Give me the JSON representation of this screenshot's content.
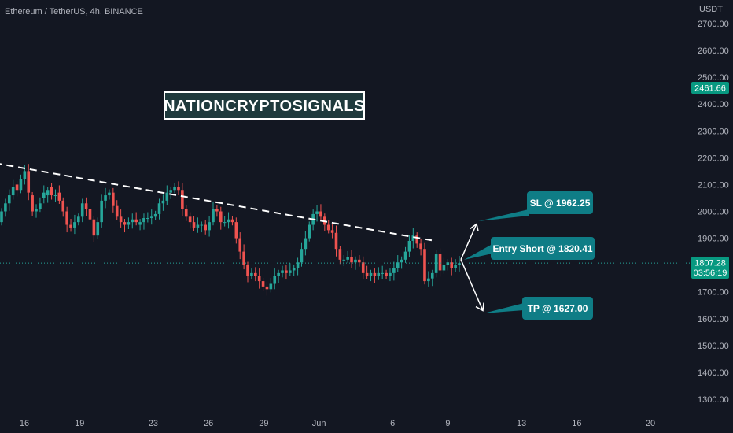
{
  "header": {
    "symbol": "Ethereum / TetherUS, 4h, BINANCE"
  },
  "watermark": {
    "text": "NATIONCRYPTOSIGNALS"
  },
  "axis": {
    "unit": "USDT",
    "y_ticks": [
      "2700.00",
      "2600.00",
      "2500.00",
      "2400.00",
      "2300.00",
      "2200.00",
      "2100.00",
      "2000.00",
      "1900.00",
      "1800.00",
      "1700.00",
      "1600.00",
      "1500.00",
      "1400.00",
      "1300.00"
    ],
    "y_tick_values": [
      2700,
      2600,
      2500,
      2400,
      2300,
      2200,
      2100,
      2000,
      1900,
      1800,
      1700,
      1600,
      1500,
      1400,
      1300
    ],
    "x_ticks": [
      "16",
      "19",
      "23",
      "26",
      "29",
      "Jun",
      "6",
      "9",
      "13",
      "16",
      "20"
    ],
    "x_tick_index": [
      0,
      3,
      7,
      10,
      13,
      16,
      20,
      23,
      27,
      30,
      34
    ]
  },
  "badges": {
    "top_price": "2461.66",
    "current_price": "1807.28",
    "countdown": "03:56:19"
  },
  "callouts": {
    "sl": "SL @ 1962.25",
    "entry": "Entry Short @ 1820.41",
    "tp": "TP @ 1627.00"
  },
  "colors": {
    "background": "#131722",
    "up": "#26a69a",
    "down": "#ef5350",
    "callout": "#0f7d86",
    "text": "#b2b5be",
    "trendline": "#ffffff",
    "badge_green": "#089981"
  },
  "chart_data": {
    "type": "candlestick",
    "symbol": "Ethereum / TetherUS",
    "interval": "4h",
    "exchange": "BINANCE",
    "y_unit": "USDT",
    "ylim": [
      1250,
      2750
    ],
    "current_price": 1807.28,
    "marked_price": 2461.66,
    "trendline": {
      "style": "dashed",
      "from": {
        "day": -1.6,
        "price": 2180
      },
      "to": {
        "day": 22.3,
        "price": 1890
      }
    },
    "trade_levels": {
      "entry": 1820.41,
      "stop_loss": 1962.25,
      "take_profit": 1627.0
    },
    "candles_close": [
      2000,
      2030,
      2060,
      2090,
      2080,
      2120,
      2150,
      2070,
      2000,
      2010,
      2030,
      2070,
      2080,
      2060,
      2060,
      2040,
      2000,
      1950,
      1940,
      1960,
      1980,
      2030,
      2010,
      1970,
      1910,
      1960,
      2040,
      2060,
      2070,
      2020,
      1980,
      1960,
      1950,
      1960,
      1970,
      1960,
      1960,
      1975,
      1975,
      1980,
      1990,
      2030,
      2040,
      2070,
      2080,
      2090,
      2080,
      2010,
      1980,
      1960,
      1940,
      1950,
      1950,
      1930,
      1960,
      2010,
      2000,
      1960,
      1960,
      1970,
      1960,
      1900,
      1850,
      1800,
      1760,
      1770,
      1760,
      1740,
      1720,
      1710,
      1730,
      1760,
      1770,
      1780,
      1770,
      1780,
      1790,
      1810,
      1860,
      1900,
      1950,
      1990,
      2000,
      1980,
      1950,
      1930,
      1920,
      1860,
      1820,
      1820,
      1830,
      1810,
      1820,
      1810,
      1770,
      1760,
      1770,
      1760,
      1770,
      1770,
      1760,
      1770,
      1790,
      1810,
      1820,
      1850,
      1890,
      1910,
      1880,
      1860,
      1740,
      1750,
      1770,
      1840,
      1780,
      1800,
      1810,
      1790,
      1800,
      1807
    ],
    "candles_open": [
      1960,
      2000,
      2030,
      2060,
      2100,
      2080,
      2120,
      2150,
      2060,
      2000,
      2010,
      2050,
      2060,
      2090,
      2060,
      2070,
      2040,
      2000,
      1950,
      1940,
      1960,
      1980,
      2030,
      2010,
      1970,
      1910,
      1960,
      2040,
      2060,
      2070,
      2020,
      1980,
      1960,
      1950,
      1960,
      1970,
      1950,
      1960,
      1975,
      1975,
      1980,
      1990,
      2030,
      2040,
      2070,
      2080,
      2090,
      2080,
      2010,
      1980,
      1960,
      1940,
      1950,
      1950,
      1930,
      1960,
      2010,
      2000,
      1960,
      1960,
      1970,
      1960,
      1900,
      1850,
      1800,
      1760,
      1770,
      1760,
      1740,
      1720,
      1710,
      1730,
      1760,
      1770,
      1780,
      1770,
      1780,
      1790,
      1810,
      1860,
      1900,
      1950,
      1990,
      2000,
      1980,
      1950,
      1930,
      1920,
      1860,
      1820,
      1820,
      1830,
      1810,
      1820,
      1810,
      1770,
      1760,
      1770,
      1760,
      1770,
      1770,
      1760,
      1770,
      1790,
      1810,
      1820,
      1850,
      1890,
      1910,
      1880,
      1860,
      1740,
      1750,
      1770,
      1840,
      1780,
      1800,
      1810,
      1790,
      1800
    ]
  }
}
